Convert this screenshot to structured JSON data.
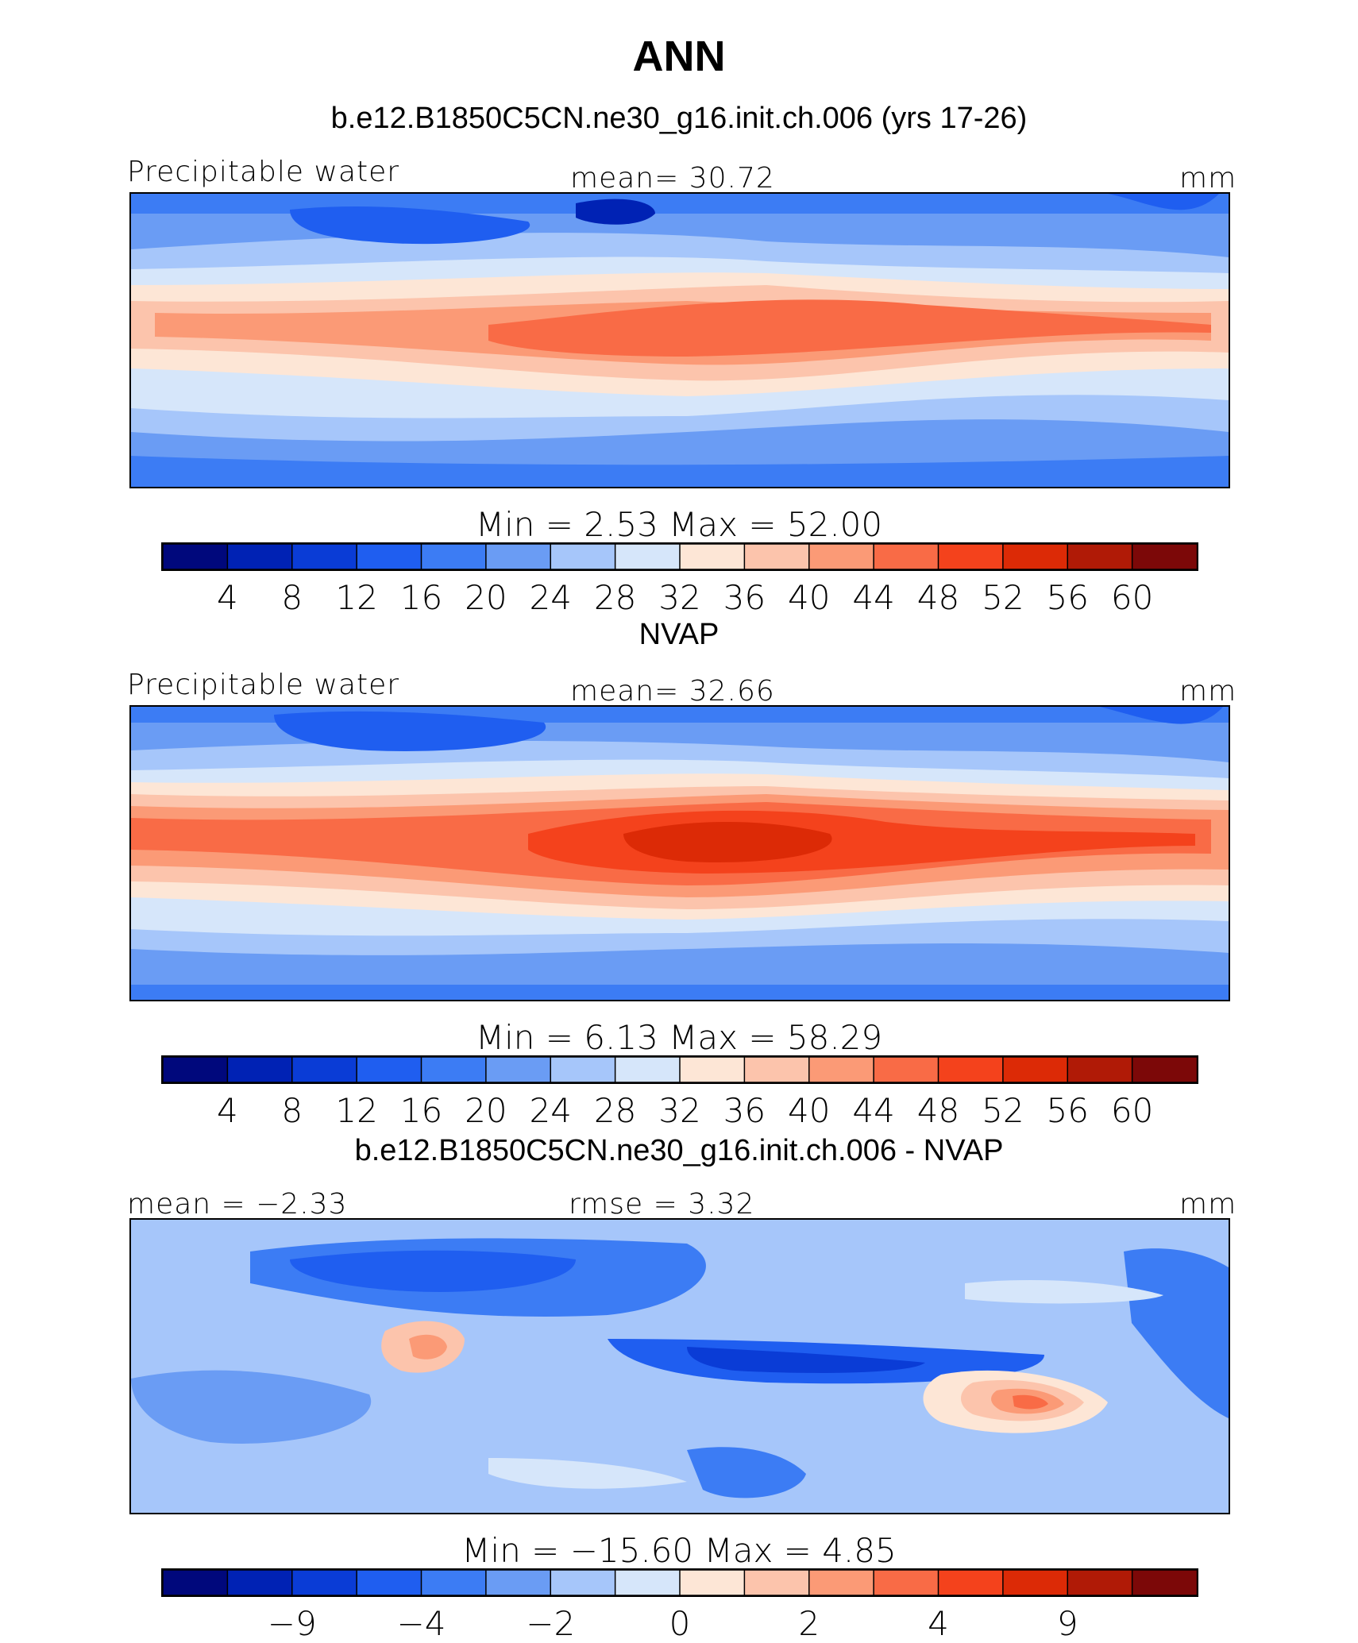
{
  "title": "ANN",
  "colors": [
    "#00087c",
    "#0022b4",
    "#0a3cd6",
    "#1f5ef0",
    "#3c7cf4",
    "#6a9cf4",
    "#a6c6fa",
    "#d6e6fa",
    "#fde6d6",
    "#fcc4ac",
    "#fb9a76",
    "#f96b46",
    "#f4421c",
    "#dc2a06",
    "#b01a06",
    "#7c0808"
  ],
  "chart_data": [
    {
      "type": "heatmap",
      "subtitle": "b.e12.B1850C5CN.ne30_g16.init.ch.006 (yrs 17-26)",
      "left_label": "Precipitable water",
      "center_label": "mean=  30.72",
      "units": "mm",
      "stats_text": "Min =    2.53  Max =    52.00",
      "min": 2.53,
      "max": 52.0,
      "mean": 30.72,
      "levels": [
        4,
        8,
        12,
        16,
        20,
        24,
        28,
        32,
        36,
        40,
        44,
        48,
        52,
        56,
        60
      ],
      "tick_labels": [
        "4",
        "8",
        "12",
        "16",
        "20",
        "24",
        "28",
        "32",
        "36",
        "40",
        "44",
        "48",
        "52",
        "56",
        "60"
      ]
    },
    {
      "type": "heatmap",
      "subtitle": "NVAP",
      "left_label": "Precipitable water",
      "center_label": "mean=  32.66",
      "units": "mm",
      "stats_text": "Min =    6.13  Max =    58.29",
      "min": 6.13,
      "max": 58.29,
      "mean": 32.66,
      "levels": [
        4,
        8,
        12,
        16,
        20,
        24,
        28,
        32,
        36,
        40,
        44,
        48,
        52,
        56,
        60
      ],
      "tick_labels": [
        "4",
        "8",
        "12",
        "16",
        "20",
        "24",
        "28",
        "32",
        "36",
        "40",
        "44",
        "48",
        "52",
        "56",
        "60"
      ]
    },
    {
      "type": "heatmap",
      "subtitle": "b.e12.B1850C5CN.ne30_g16.init.ch.006 - NVAP",
      "left_label": "mean =  −2.33",
      "center_label": "rmse =    3.32",
      "units": "mm",
      "stats_text": "Min = −15.60  Max =    4.85",
      "min": -15.6,
      "max": 4.85,
      "mean": -2.33,
      "rmse": 3.32,
      "levels": [
        -9,
        -4,
        -2,
        0,
        2,
        4,
        9
      ],
      "tick_labels": [
        "−9",
        "−4",
        "−2",
        "0",
        "2",
        "4",
        "9"
      ]
    }
  ]
}
